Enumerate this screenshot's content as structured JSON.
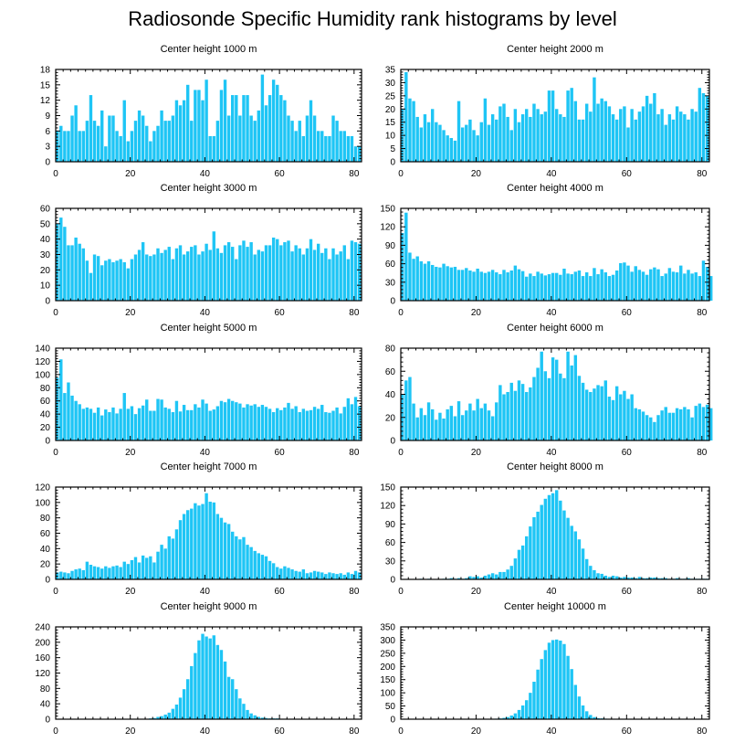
{
  "title": "Radiosonde Specific Humidity rank histograms by level",
  "colors": {
    "bar": "#1ec5f5",
    "bar_edge": "#0aa8e0",
    "axis": "#000000",
    "background": "#ffffff"
  },
  "chart_data": [
    {
      "type": "bar",
      "title": "Center height 1000 m",
      "xlim": [
        0,
        82
      ],
      "ylim": [
        0,
        18
      ],
      "xticks": [
        0,
        20,
        40,
        60,
        80
      ],
      "yticks": [
        0,
        3,
        6,
        9,
        12,
        15,
        18
      ],
      "values": [
        6,
        7,
        6,
        6,
        9,
        11,
        6,
        6,
        8,
        13,
        8,
        7,
        10,
        3,
        9,
        9,
        6,
        5,
        12,
        4,
        6,
        8,
        10,
        9,
        7,
        4,
        6,
        7,
        10,
        8,
        8,
        9,
        12,
        11,
        12,
        15,
        8,
        14,
        14,
        12,
        16,
        5,
        5,
        8,
        14,
        16,
        9,
        13,
        13,
        9,
        13,
        13,
        9,
        8,
        10,
        17,
        11,
        13,
        16,
        15,
        13,
        12,
        9,
        8,
        6,
        8,
        5,
        9,
        12,
        9,
        6,
        6,
        5,
        5,
        9,
        8,
        6,
        6,
        5,
        5,
        3,
        3
      ]
    },
    {
      "type": "bar",
      "title": "Center height 2000 m",
      "xlim": [
        0,
        82
      ],
      "ylim": [
        0,
        35
      ],
      "xticks": [
        0,
        20,
        40,
        60,
        80
      ],
      "yticks": [
        0,
        5,
        10,
        15,
        20,
        25,
        30,
        35
      ],
      "values": [
        20,
        34,
        24,
        23,
        17,
        13,
        18,
        15,
        20,
        15,
        14,
        12,
        10,
        9,
        8,
        23,
        13,
        14,
        16,
        12,
        10,
        15,
        24,
        14,
        18,
        16,
        21,
        22,
        17,
        12,
        20,
        15,
        18,
        20,
        17,
        22,
        20,
        18,
        19,
        27,
        27,
        20,
        18,
        17,
        27,
        28,
        23,
        16,
        16,
        22,
        19,
        32,
        22,
        24,
        23,
        21,
        18,
        16,
        20,
        21,
        13,
        20,
        16,
        19,
        21,
        25,
        22,
        26,
        18,
        20,
        14,
        18,
        16,
        21,
        19,
        18,
        16,
        20,
        19,
        28,
        26,
        25
      ]
    },
    {
      "type": "bar",
      "title": "Center height 3000 m",
      "xlim": [
        0,
        82
      ],
      "ylim": [
        0,
        60
      ],
      "xticks": [
        0,
        20,
        40,
        60,
        80
      ],
      "yticks": [
        0,
        10,
        20,
        30,
        40,
        50,
        60
      ],
      "values": [
        50,
        54,
        48,
        36,
        36,
        41,
        37,
        34,
        26,
        18,
        30,
        29,
        23,
        26,
        27,
        25,
        26,
        27,
        25,
        21,
        27,
        30,
        33,
        38,
        30,
        29,
        30,
        34,
        31,
        33,
        35,
        27,
        34,
        36,
        30,
        32,
        35,
        36,
        30,
        32,
        37,
        33,
        45,
        34,
        31,
        36,
        38,
        35,
        27,
        36,
        39,
        35,
        38,
        30,
        33,
        32,
        36,
        36,
        41,
        40,
        36,
        38,
        39,
        32,
        36,
        34,
        30,
        34,
        40,
        33,
        37,
        31,
        34,
        27,
        34,
        30,
        32,
        36,
        27,
        39,
        38,
        37
      ]
    },
    {
      "type": "bar",
      "title": "Center height 4000 m",
      "xlim": [
        0,
        82
      ],
      "ylim": [
        0,
        150
      ],
      "xticks": [
        0,
        20,
        40,
        60,
        80
      ],
      "yticks": [
        0,
        30,
        60,
        90,
        120,
        150
      ],
      "values": [
        110,
        143,
        78,
        68,
        72,
        64,
        60,
        64,
        58,
        55,
        54,
        60,
        56,
        54,
        55,
        50,
        50,
        53,
        49,
        47,
        52,
        47,
        45,
        47,
        50,
        46,
        43,
        50,
        46,
        49,
        57,
        51,
        48,
        39,
        44,
        40,
        47,
        44,
        41,
        43,
        45,
        45,
        42,
        52,
        44,
        43,
        47,
        49,
        40,
        46,
        40,
        53,
        43,
        51,
        46,
        40,
        42,
        49,
        61,
        62,
        57,
        47,
        56,
        50,
        47,
        42,
        51,
        54,
        51,
        40,
        44,
        53,
        47,
        46,
        57,
        44,
        50,
        44,
        46,
        40,
        65,
        55,
        40
      ]
    },
    {
      "type": "bar",
      "title": "Center height 5000 m",
      "xlim": [
        0,
        82
      ],
      "ylim": [
        0,
        140
      ],
      "xticks": [
        0,
        20,
        40,
        60,
        80
      ],
      "yticks": [
        0,
        20,
        40,
        60,
        80,
        100,
        120,
        140
      ],
      "values": [
        95,
        123,
        72,
        88,
        68,
        60,
        55,
        48,
        50,
        48,
        42,
        50,
        38,
        47,
        43,
        50,
        41,
        48,
        72,
        48,
        52,
        40,
        49,
        53,
        62,
        45,
        45,
        63,
        62,
        50,
        48,
        43,
        60,
        44,
        54,
        46,
        46,
        55,
        50,
        62,
        56,
        45,
        47,
        52,
        60,
        58,
        63,
        60,
        58,
        56,
        50,
        55,
        53,
        55,
        51,
        54,
        51,
        48,
        43,
        49,
        46,
        50,
        57,
        48,
        52,
        43,
        48,
        45,
        46,
        51,
        48,
        54,
        43,
        42,
        45,
        50,
        41,
        51,
        64,
        55,
        66,
        52
      ]
    },
    {
      "type": "bar",
      "title": "Center height 6000 m",
      "xlim": [
        0,
        82
      ],
      "ylim": [
        0,
        80
      ],
      "xticks": [
        0,
        20,
        40,
        60,
        80
      ],
      "yticks": [
        0,
        20,
        40,
        60,
        80
      ],
      "values": [
        40,
        52,
        55,
        32,
        20,
        28,
        22,
        33,
        27,
        18,
        24,
        19,
        27,
        30,
        21,
        34,
        22,
        26,
        32,
        26,
        36,
        28,
        32,
        26,
        21,
        33,
        48,
        40,
        42,
        50,
        43,
        52,
        49,
        42,
        46,
        55,
        63,
        77,
        60,
        54,
        72,
        70,
        58,
        54,
        77,
        65,
        74,
        56,
        50,
        44,
        42,
        45,
        48,
        47,
        52,
        38,
        35,
        47,
        40,
        43,
        36,
        40,
        28,
        27,
        25,
        22,
        20,
        16,
        22,
        26,
        29,
        24,
        24,
        28,
        27,
        29,
        27,
        20,
        30,
        32,
        29,
        31,
        28
      ]
    },
    {
      "type": "bar",
      "title": "Center height 7000 m",
      "xlim": [
        0,
        82
      ],
      "ylim": [
        0,
        120
      ],
      "xticks": [
        0,
        20,
        40,
        60,
        80
      ],
      "yticks": [
        0,
        20,
        40,
        60,
        80,
        100,
        120
      ],
      "values": [
        9,
        10,
        9,
        8,
        11,
        13,
        14,
        12,
        23,
        19,
        17,
        16,
        14,
        17,
        15,
        17,
        18,
        16,
        23,
        20,
        25,
        29,
        22,
        31,
        28,
        30,
        22,
        36,
        45,
        40,
        56,
        53,
        65,
        77,
        85,
        90,
        92,
        99,
        96,
        98,
        112,
        101,
        100,
        85,
        80,
        74,
        72,
        62,
        56,
        52,
        55,
        45,
        42,
        37,
        34,
        32,
        30,
        24,
        21,
        16,
        14,
        17,
        15,
        13,
        11,
        10,
        13,
        8,
        9,
        11,
        10,
        9,
        7,
        9,
        8,
        7,
        8,
        6,
        9,
        7,
        11,
        9
      ]
    },
    {
      "type": "bar",
      "title": "Center height 8000 m",
      "xlim": [
        0,
        82
      ],
      "ylim": [
        0,
        150
      ],
      "xticks": [
        0,
        20,
        40,
        60,
        80
      ],
      "yticks": [
        0,
        30,
        60,
        90,
        120,
        150
      ],
      "values": [
        0,
        0,
        0,
        0,
        0,
        1,
        0,
        1,
        0,
        0,
        0,
        1,
        1,
        2,
        1,
        2,
        1,
        2,
        5,
        4,
        5,
        3,
        6,
        8,
        10,
        8,
        12,
        12,
        16,
        22,
        34,
        48,
        55,
        70,
        86,
        101,
        110,
        121,
        131,
        137,
        140,
        145,
        128,
        112,
        100,
        87,
        78,
        65,
        50,
        33,
        22,
        15,
        10,
        9,
        6,
        4,
        6,
        5,
        3,
        4,
        3,
        3,
        2,
        4,
        2,
        2,
        3,
        3,
        2,
        2,
        2,
        1,
        1,
        2,
        1,
        1,
        2,
        1,
        1,
        1,
        1,
        1
      ]
    },
    {
      "type": "bar",
      "title": "Center height 9000 m",
      "xlim": [
        0,
        82
      ],
      "ylim": [
        0,
        240
      ],
      "xticks": [
        0,
        20,
        40,
        60,
        80
      ],
      "yticks": [
        0,
        40,
        80,
        120,
        160,
        200,
        240
      ],
      "values": [
        0,
        0,
        0,
        0,
        0,
        0,
        0,
        0,
        0,
        0,
        0,
        0,
        0,
        0,
        0,
        0,
        0,
        0,
        0,
        0,
        0,
        0,
        0,
        1,
        1,
        2,
        3,
        6,
        8,
        12,
        17,
        27,
        38,
        56,
        78,
        104,
        138,
        172,
        205,
        222,
        215,
        210,
        218,
        193,
        180,
        150,
        110,
        104,
        78,
        54,
        40,
        24,
        15,
        10,
        6,
        4,
        3,
        2,
        2,
        2,
        1,
        1,
        1,
        1,
        1,
        0,
        0,
        0,
        0,
        0,
        0,
        0,
        0,
        0,
        0,
        0,
        0,
        0,
        0,
        0,
        0,
        0
      ]
    },
    {
      "type": "bar",
      "title": "Center height 10000 m",
      "xlim": [
        0,
        82
      ],
      "ylim": [
        0,
        350
      ],
      "xticks": [
        0,
        20,
        40,
        60,
        80
      ],
      "yticks": [
        0,
        50,
        100,
        150,
        200,
        250,
        300,
        350
      ],
      "values": [
        0,
        0,
        0,
        0,
        0,
        0,
        0,
        0,
        0,
        0,
        0,
        0,
        0,
        0,
        0,
        0,
        0,
        0,
        0,
        0,
        0,
        0,
        0,
        1,
        1,
        2,
        3,
        5,
        8,
        14,
        22,
        35,
        52,
        72,
        100,
        142,
        188,
        228,
        262,
        290,
        300,
        302,
        298,
        285,
        240,
        190,
        130,
        86,
        52,
        30,
        16,
        8,
        4,
        3,
        2,
        1,
        1,
        1,
        0,
        0,
        0,
        0,
        0,
        0,
        0,
        0,
        0,
        0,
        0,
        0,
        0,
        0,
        0,
        0,
        0,
        0,
        0,
        0,
        0,
        0,
        0,
        0
      ]
    }
  ]
}
